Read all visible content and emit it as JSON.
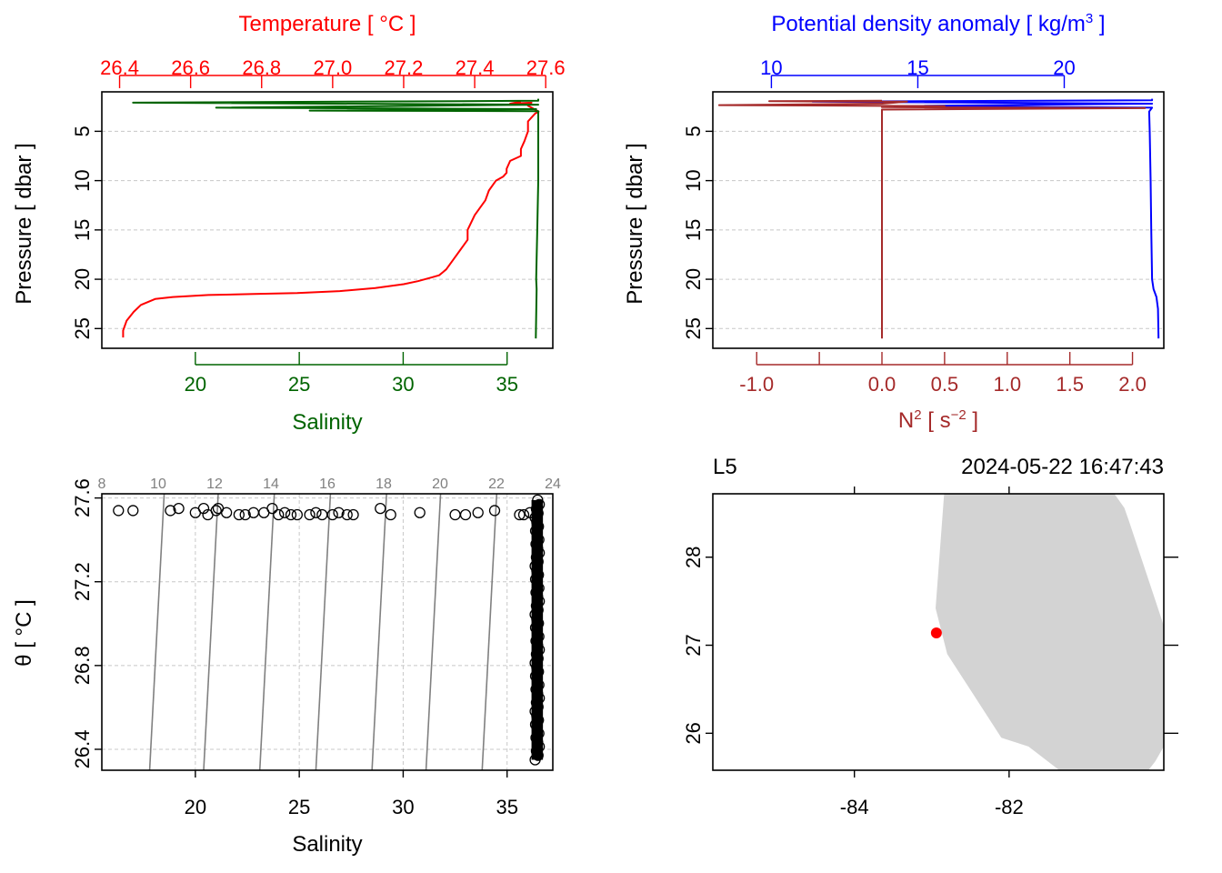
{
  "chart_data": [
    {
      "id": "tsp",
      "type": "line",
      "title": "",
      "top_axis": {
        "label": "Temperature [ °C ]",
        "color": "#ff0000",
        "range": [
          26.35,
          27.62
        ],
        "ticks": [
          26.4,
          26.6,
          26.8,
          27.0,
          27.2,
          27.4,
          27.6
        ],
        "tick_labels": [
          "26.4",
          "26.6",
          "26.8",
          "27.0",
          "27.2",
          "27.4",
          "27.6"
        ]
      },
      "bottom_axis": {
        "label": "Salinity",
        "color": "#006400",
        "range": [
          15.5,
          37.2
        ],
        "ticks": [
          20,
          25,
          30,
          35
        ],
        "tick_labels": [
          "20",
          "25",
          "30",
          "35"
        ]
      },
      "left_axis": {
        "label": "Pressure [ dbar ]",
        "range": [
          27,
          1
        ],
        "ticks": [
          5,
          10,
          15,
          20,
          25
        ],
        "tick_labels": [
          "5",
          "10",
          "15",
          "20",
          "25"
        ]
      },
      "series": [
        {
          "name": "Temperature",
          "axis": "top",
          "color": "#ff0000",
          "x": [
            27.53,
            27.5,
            27.56,
            27.55,
            27.57,
            27.58,
            27.57,
            27.56,
            27.55,
            27.55,
            27.54,
            27.53,
            27.53,
            27.5,
            27.49,
            27.49,
            27.48,
            27.46,
            27.44,
            27.43,
            27.4,
            27.38,
            27.38,
            27.36,
            27.34,
            27.33,
            27.32,
            27.31,
            27.3,
            27.28,
            27.26,
            27.24,
            27.2,
            27.12,
            27.02,
            26.9,
            26.78,
            26.65,
            26.55,
            26.5,
            26.46,
            26.44,
            26.42,
            26.41,
            26.41
          ],
          "y": [
            2.0,
            2.2,
            2.1,
            2.4,
            2.8,
            3.0,
            3.2,
            3.6,
            4.0,
            5.0,
            6.0,
            6.8,
            7.5,
            8.0,
            8.8,
            9.2,
            9.6,
            10.0,
            11.0,
            12.0,
            13.5,
            15.0,
            16.0,
            17.0,
            18.0,
            18.5,
            19.0,
            19.3,
            19.6,
            19.8,
            20.0,
            20.2,
            20.5,
            20.9,
            21.2,
            21.4,
            21.5,
            21.6,
            21.8,
            22.0,
            22.6,
            23.3,
            24.2,
            25.2,
            25.9
          ]
        },
        {
          "name": "Salinity",
          "axis": "bottom",
          "color": "#006400",
          "x": [
            36.5,
            36.5,
            17.0,
            36.5,
            21.0,
            36.4,
            25.5,
            36.5,
            36.5,
            36.5,
            36.45,
            36.4,
            36.42,
            36.38
          ],
          "y": [
            1.7,
            1.9,
            2.1,
            2.3,
            2.6,
            2.75,
            2.9,
            2.95,
            5.0,
            10.0,
            15.0,
            20.0,
            21.0,
            26.0
          ]
        }
      ]
    },
    {
      "id": "density",
      "type": "line",
      "title": "",
      "top_axis": {
        "label": "Potential density anomaly [ kg/m³ ]",
        "color": "#0000ff",
        "range": [
          8.0,
          23.4
        ],
        "ticks": [
          10,
          15,
          20
        ],
        "tick_labels": [
          "10",
          "15",
          "20"
        ]
      },
      "bottom_axis": {
        "label": "N² [ s⁻² ]",
        "color": "#a52a2a",
        "range": [
          -1.35,
          2.25
        ],
        "ticks": [
          -1.0,
          -0.5,
          0.0,
          0.5,
          1.0,
          1.5,
          2.0
        ],
        "tick_labels": [
          "-1.0",
          "",
          "0.0",
          "0.5",
          "1.0",
          "1.5",
          "2.0"
        ]
      },
      "left_axis": {
        "label": "Pressure [ dbar ]",
        "range": [
          27,
          1
        ],
        "ticks": [
          5,
          10,
          15,
          20,
          25
        ],
        "tick_labels": [
          "5",
          "10",
          "15",
          "20",
          "25"
        ]
      },
      "series": [
        {
          "name": "Potential density anomaly",
          "axis": "top",
          "color": "#0000ff",
          "x": [
            23.0,
            23.0,
            11.4,
            23.0,
            14.2,
            23.0,
            22.9,
            22.92,
            22.95,
            22.97,
            23.0,
            23.05,
            23.15,
            23.2,
            23.22
          ],
          "y": [
            1.7,
            1.85,
            2.0,
            2.2,
            2.45,
            2.6,
            3.0,
            5.0,
            10.0,
            15.0,
            20.0,
            21.0,
            21.8,
            23.0,
            26.0
          ]
        },
        {
          "name": "N²",
          "axis": "bottom",
          "color": "#a52a2a",
          "x": [
            0.0,
            -0.9,
            0.2,
            0.0,
            -1.3,
            0.5,
            0.0,
            2.1,
            0.0,
            0.0,
            0.0,
            0.0
          ],
          "y": [
            1.9,
            1.95,
            2.0,
            2.2,
            2.35,
            2.45,
            2.55,
            2.65,
            2.8,
            10.0,
            20.0,
            26.0
          ]
        }
      ]
    },
    {
      "id": "ts_diagram",
      "type": "scatter",
      "title": "",
      "x_axis": {
        "label": "Salinity",
        "range": [
          15.5,
          37.2
        ],
        "ticks": [
          20,
          25,
          30,
          35
        ],
        "tick_labels": [
          "20",
          "25",
          "30",
          "35"
        ]
      },
      "y_axis": {
        "label": "θ [ °C ]",
        "range": [
          26.3,
          27.62
        ],
        "ticks": [
          26.4,
          26.8,
          27.2,
          27.6
        ],
        "tick_labels": [
          "26.4",
          "26.8",
          "27.2",
          "27.6"
        ]
      },
      "density_contours": {
        "labels": [
          "8",
          "10",
          "12",
          "14",
          "16",
          "18",
          "20",
          "22",
          "24"
        ],
        "lines": [
          {
            "label": "10",
            "s_bottom": 17.8,
            "s_top": 18.5
          },
          {
            "label": "12",
            "s_bottom": 20.4,
            "s_top": 21.1
          },
          {
            "label": "14",
            "s_bottom": 23.1,
            "s_top": 23.8
          },
          {
            "label": "16",
            "s_bottom": 25.8,
            "s_top": 26.5
          },
          {
            "label": "18",
            "s_bottom": 28.5,
            "s_top": 29.2
          },
          {
            "label": "20",
            "s_bottom": 31.1,
            "s_top": 31.8
          },
          {
            "label": "22",
            "s_bottom": 33.8,
            "s_top": 34.5
          }
        ]
      },
      "points": {
        "salinity": [
          16.3,
          17.0,
          18.8,
          19.2,
          20.0,
          20.4,
          20.6,
          21.0,
          21.1,
          21.5,
          22.1,
          22.4,
          22.8,
          23.3,
          23.7,
          24.0,
          24.3,
          24.6,
          24.9,
          25.5,
          25.8,
          26.1,
          26.6,
          26.9,
          27.3,
          27.6,
          28.9,
          29.4,
          30.8,
          32.5,
          33.0,
          33.6,
          34.4,
          35.6,
          35.8,
          36.1
        ],
        "theta": [
          27.54,
          27.54,
          27.54,
          27.55,
          27.53,
          27.55,
          27.52,
          27.54,
          27.55,
          27.53,
          27.52,
          27.52,
          27.53,
          27.53,
          27.55,
          27.52,
          27.53,
          27.52,
          27.52,
          27.52,
          27.53,
          27.52,
          27.52,
          27.53,
          27.52,
          27.52,
          27.55,
          27.52,
          27.53,
          27.52,
          27.52,
          27.53,
          27.54,
          27.52,
          27.52,
          27.53
        ]
      },
      "dense_cluster": {
        "salinity_min": 36.35,
        "salinity_max": 36.55,
        "theta_min": 26.35,
        "theta_max": 27.59
      }
    },
    {
      "id": "map",
      "type": "map",
      "station": "L5",
      "datetime": "2024-05-22 16:47:43",
      "x_axis": {
        "ticks": [
          -84,
          -82
        ],
        "tick_labels": [
          "-84",
          "-82"
        ],
        "range": [
          -85.83,
          -80.0
        ]
      },
      "y_axis": {
        "ticks": [
          26,
          27,
          28
        ],
        "tick_labels": [
          "26",
          "27",
          "28"
        ],
        "range": [
          25.58,
          28.72
        ]
      },
      "station_position": {
        "lon": -82.94,
        "lat": 27.14
      },
      "station_color": "#ff0000",
      "land_color": "#d3d3d3",
      "coastline": {
        "lon": [
          -82.84,
          -80.64,
          -80.51,
          -80.45,
          -80.0,
          -80.0,
          -80.0,
          -80.11,
          -80.2,
          -81.35,
          -81.75,
          -82.1,
          -82.8,
          -82.95,
          -82.84
        ],
        "lat": [
          28.72,
          28.72,
          28.56,
          28.41,
          27.22,
          26.92,
          25.85,
          25.68,
          25.58,
          25.58,
          25.85,
          25.95,
          26.9,
          27.42,
          28.72
        ]
      }
    }
  ]
}
